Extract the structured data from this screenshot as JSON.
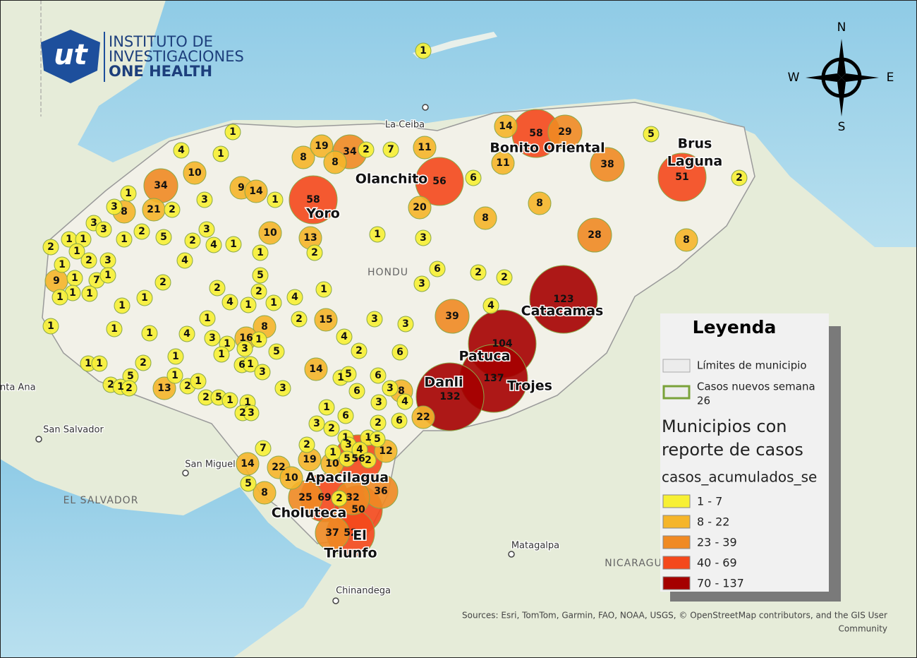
{
  "logo": {
    "mark": "ut",
    "lines": [
      "INSTITUTO DE",
      "INVESTIGACIONES",
      "ONE HEALTH"
    ]
  },
  "compass": {
    "N": "N",
    "E": "E",
    "S": "S",
    "W": "W"
  },
  "place_labels": [
    "La Ceiba",
    "HONDU",
    "nta Ana",
    "San Salvador",
    "San Miguel",
    "EL SALVADOR",
    "Matagalpa",
    "NICARAGU",
    "Chinandega"
  ],
  "region_labels": [
    [
      "Yoro"
    ],
    [
      "Olanchito"
    ],
    [
      "Bonito Oriental"
    ],
    [
      "Brus",
      "Laguna"
    ],
    [
      "Catacamas"
    ],
    [
      "Patuca"
    ],
    [
      "Danli"
    ],
    [
      "Trojes"
    ],
    [
      "Apacilagua"
    ],
    [
      "Choluteca"
    ],
    [
      "El",
      "Triunfo"
    ]
  ],
  "case_counts": [
    1,
    1,
    4,
    1,
    10,
    34,
    9,
    14,
    1,
    3,
    3,
    8,
    21,
    2,
    1,
    8,
    19,
    8,
    34,
    2,
    7,
    11,
    14,
    58,
    29,
    11,
    38,
    5,
    2,
    51,
    58,
    56,
    6,
    20,
    8,
    8,
    28,
    8,
    1,
    3,
    13,
    2,
    10,
    3,
    3,
    2,
    5,
    1,
    2,
    3,
    4,
    1,
    2,
    1,
    1,
    1,
    2,
    3,
    1,
    7,
    1,
    1,
    1,
    1,
    9,
    1,
    2,
    1,
    4,
    5,
    2,
    2,
    4,
    1,
    1,
    4,
    1,
    6,
    2,
    2,
    3,
    4,
    39,
    123,
    1,
    1,
    1,
    1,
    1,
    4,
    1,
    3,
    1,
    2,
    15,
    8,
    16,
    1,
    3,
    1,
    5,
    3,
    3,
    4,
    2,
    6,
    104,
    2,
    1,
    1,
    1,
    6,
    1,
    3,
    14,
    1,
    5,
    6,
    5,
    2,
    1,
    2,
    13,
    1,
    2,
    1,
    3,
    6,
    3,
    8,
    137,
    132,
    2,
    5,
    1,
    1,
    2,
    3,
    3,
    4,
    1,
    6,
    3,
    2,
    2,
    6,
    22,
    1,
    1,
    5,
    7,
    2,
    1,
    3,
    4,
    5,
    56,
    2,
    12,
    14,
    22,
    19,
    10,
    10,
    36,
    5,
    8,
    25,
    69,
    2,
    32,
    50,
    37,
    52
  ],
  "legend": {
    "title": "Leyenda",
    "boundary": "Límites de municipio",
    "new_cases": [
      "Casos nuevos semana",
      "26"
    ],
    "layer": [
      "Municipios con",
      "reporte de casos"
    ],
    "field": "casos_acumulados_se",
    "classes": [
      {
        "label": "1 - 7",
        "color": "#f7f034"
      },
      {
        "label": "8 - 22",
        "color": "#f5b52a"
      },
      {
        "label": "23 - 39",
        "color": "#f08a24"
      },
      {
        "label": "40 - 69",
        "color": "#f4481c"
      },
      {
        "label": "70 - 137",
        "color": "#a50000"
      }
    ]
  },
  "attribution": [
    "Sources: Esri, TomTom, Garmin, FAO, NOAA, USGS, © OpenStreetMap contributors, and the GIS User",
    "Community"
  ]
}
